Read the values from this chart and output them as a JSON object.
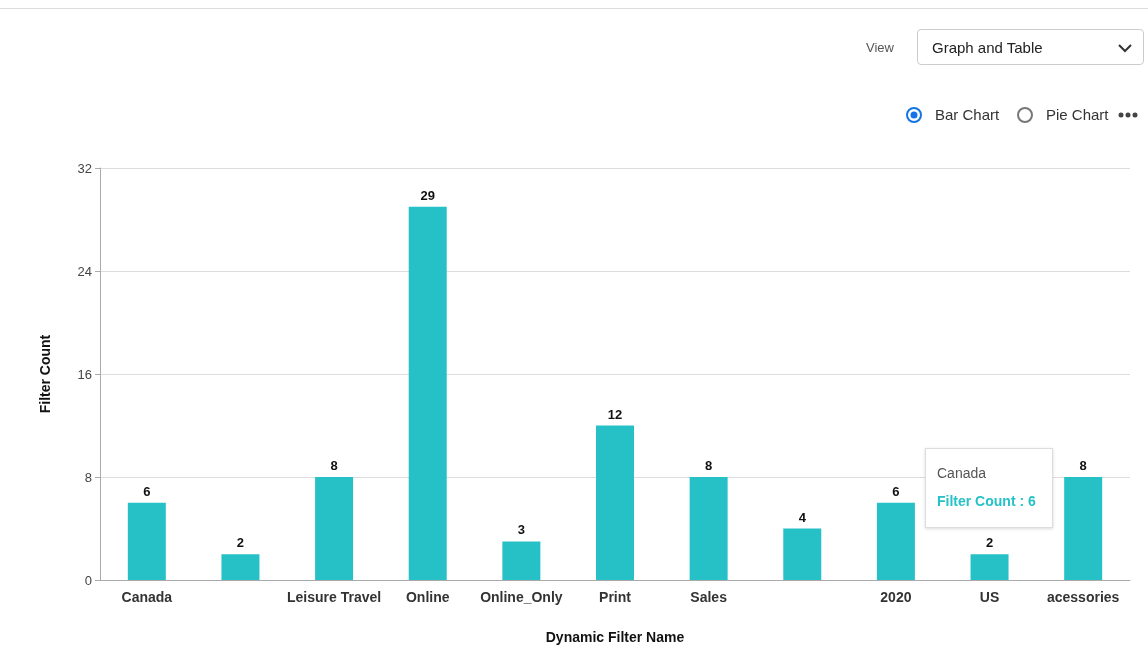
{
  "chart_data": {
    "type": "bar",
    "xlabel": "Dynamic Filter Name",
    "ylabel": "Filter Count",
    "categories": [
      "Canada",
      null,
      "Leisure Travel",
      "Online",
      "Online_Only",
      "Print",
      "Sales",
      null,
      "2020",
      "US",
      "acessories"
    ],
    "values": [
      6,
      2,
      8,
      29,
      3,
      12,
      8,
      4,
      6,
      2,
      8
    ],
    "color": "#26c1c6",
    "ylim": [
      0,
      32
    ],
    "yticks": [
      0,
      8,
      16,
      24,
      32
    ],
    "grid": "y",
    "data_labels": true,
    "annotations": [
      "View",
      "Graph and Table",
      "Bar Chart",
      "Pie Chart",
      "Canada",
      "Filter Count : 6"
    ]
  }
}
